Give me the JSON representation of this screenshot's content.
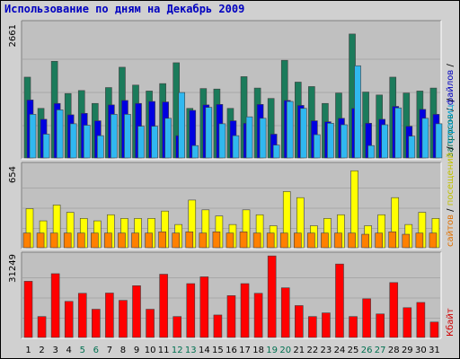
{
  "title": "Использование по дням на Декабрь 2009",
  "y_top_labels": {
    "top": "2661",
    "mid": "654",
    "bot": "31249"
  },
  "right_labels": {
    "top": [
      {
        "text": "запросов",
        "color": "#006040"
      },
      {
        "text": " / ",
        "color": "#000000"
      },
      {
        "text": "файлов",
        "color": "#0000c0"
      },
      {
        "text": " / ",
        "color": "#000000"
      }
    ],
    "mid": [
      {
        "text": "сайтов",
        "color": "#e07000"
      },
      {
        "text": " / ",
        "color": "#000000"
      },
      {
        "text": "посещений",
        "color": "#c0c000"
      },
      {
        "text": " / ",
        "color": "#000000"
      },
      {
        "text": "страниц",
        "color": "#00a0d0"
      },
      {
        "text": " / ",
        "color": "#000000"
      }
    ],
    "bot": [
      {
        "text": "Кбайт",
        "color": "#d00000"
      }
    ]
  },
  "colors": {
    "hits": "#1b7b5b",
    "files": "#0000e0",
    "pages": "#30b8f0",
    "visits": "#ffff00",
    "sites": "#ff8000",
    "kbytes": "#ff0000",
    "plot_bg": "#c0c0c0",
    "weekend_label": "#007050",
    "weekday_label": "#000000"
  },
  "chart_data": [
    {
      "type": "bar",
      "name": "hits-files-pages",
      "categories": [
        "1",
        "2",
        "3",
        "4",
        "5",
        "6",
        "7",
        "8",
        "9",
        "10",
        "11",
        "12",
        "13",
        "14",
        "15",
        "16",
        "17",
        "18",
        "19",
        "20",
        "21",
        "22",
        "23",
        "24",
        "25",
        "26",
        "27",
        "28",
        "29",
        "30",
        "31"
      ],
      "weekend_days": [
        5,
        6,
        12,
        13,
        19,
        20,
        26,
        27
      ],
      "ylim": [
        0,
        2661
      ],
      "ylabel_max": "2661",
      "series": [
        {
          "name": "запросов",
          "values": [
            1630,
            1000,
            1950,
            1300,
            1360,
            1100,
            1420,
            1830,
            1470,
            1350,
            1500,
            1920,
            1000,
            1400,
            1390,
            1000,
            1640,
            1410,
            1200,
            1970,
            1530,
            1440,
            1100,
            1310,
            2500,
            1330,
            1270,
            1630,
            1310,
            1350,
            1410
          ]
        },
        {
          "name": "файлов",
          "values": [
            1170,
            780,
            1100,
            870,
            900,
            750,
            1070,
            1160,
            1100,
            1140,
            1130,
            450,
            960,
            1070,
            1080,
            750,
            700,
            1080,
            480,
            1160,
            1060,
            750,
            730,
            800,
            1000,
            700,
            780,
            1040,
            640,
            980,
            880
          ]
        },
        {
          "name": "страниц",
          "values": [
            880,
            480,
            970,
            690,
            660,
            450,
            880,
            880,
            640,
            640,
            800,
            1320,
            250,
            1020,
            690,
            450,
            830,
            800,
            260,
            1140,
            1000,
            470,
            700,
            670,
            1860,
            250,
            670,
            1010,
            440,
            800,
            690
          ]
        }
      ]
    },
    {
      "type": "bar",
      "name": "visits-sites",
      "categories": [
        "1",
        "2",
        "3",
        "4",
        "5",
        "6",
        "7",
        "8",
        "9",
        "10",
        "11",
        "12",
        "13",
        "14",
        "15",
        "16",
        "17",
        "18",
        "19",
        "20",
        "21",
        "22",
        "23",
        "24",
        "25",
        "26",
        "27",
        "28",
        "29",
        "30",
        "31"
      ],
      "ylim": [
        0,
        654
      ],
      "ylabel_max": "654",
      "series": [
        {
          "name": "посещений",
          "values": [
            320,
            220,
            350,
            290,
            240,
            220,
            270,
            240,
            240,
            240,
            300,
            190,
            390,
            310,
            260,
            190,
            310,
            270,
            180,
            460,
            410,
            180,
            240,
            270,
            630,
            180,
            270,
            410,
            190,
            290,
            240
          ]
        },
        {
          "name": "сайтов",
          "values": [
            120,
            120,
            120,
            120,
            120,
            120,
            120,
            120,
            120,
            120,
            130,
            120,
            130,
            120,
            130,
            120,
            130,
            120,
            120,
            120,
            120,
            120,
            120,
            120,
            120,
            110,
            120,
            130,
            110,
            120,
            120
          ]
        }
      ]
    },
    {
      "type": "bar",
      "name": "kbytes",
      "categories": [
        "1",
        "2",
        "3",
        "4",
        "5",
        "6",
        "7",
        "8",
        "9",
        "10",
        "11",
        "12",
        "13",
        "14",
        "15",
        "16",
        "17",
        "18",
        "19",
        "20",
        "21",
        "22",
        "23",
        "24",
        "25",
        "26",
        "27",
        "28",
        "29",
        "30",
        "31"
      ],
      "ylim": [
        0,
        31249
      ],
      "ylabel_max": "31249",
      "series": [
        {
          "name": "Кбайт",
          "values": [
            21500,
            8000,
            24400,
            13800,
            16900,
            10800,
            17000,
            14200,
            19800,
            10800,
            24200,
            8000,
            20600,
            23200,
            8600,
            16000,
            20600,
            16900,
            31200,
            19000,
            12200,
            8000,
            9400,
            28100,
            8000,
            14800,
            9000,
            21000,
            11400,
            13400,
            5900
          ]
        }
      ]
    }
  ]
}
